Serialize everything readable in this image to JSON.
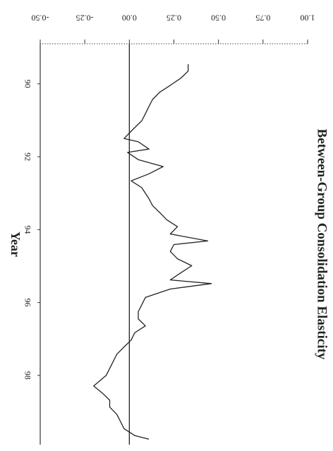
{
  "chart_data": {
    "type": "line",
    "title": "Between-Group Consolidation Elasticity",
    "x_label": "Year",
    "x": [
      89.46,
      89.65,
      89.84,
      90.04,
      90.23,
      90.43,
      90.62,
      90.82,
      91.01,
      91.3,
      91.5,
      91.59,
      91.79,
      91.88,
      92.08,
      92.27,
      92.47,
      92.66,
      92.85,
      93.15,
      93.34,
      93.53,
      93.73,
      93.92,
      94.12,
      94.31,
      94.41,
      94.6,
      94.8,
      94.99,
      95.18,
      95.38,
      95.48,
      95.63,
      95.86,
      96.06,
      96.25,
      96.45,
      96.64,
      96.83,
      97.03,
      97.22,
      97.42,
      97.61,
      97.81,
      98.0,
      98.29,
      98.49,
      98.68,
      98.87,
      99.07,
      99.26,
      99.46,
      99.65,
      99.75
    ],
    "values": [
      0.33,
      0.33,
      0.29,
      0.23,
      0.17,
      0.13,
      0.11,
      0.09,
      0.07,
      0.01,
      -0.03,
      0.05,
      0.11,
      -0.01,
      0.05,
      0.19,
      0.11,
      0.01,
      0.07,
      0.11,
      0.13,
      0.17,
      0.21,
      0.27,
      0.23,
      0.44,
      0.25,
      0.23,
      0.27,
      0.35,
      0.29,
      0.23,
      0.46,
      0.23,
      0.09,
      0.07,
      0.05,
      0.05,
      0.09,
      0.03,
      0.01,
      -0.03,
      -0.07,
      -0.09,
      -0.11,
      -0.13,
      -0.2,
      -0.15,
      -0.11,
      -0.11,
      -0.07,
      -0.05,
      -0.03,
      0.03,
      0.11
    ],
    "color": "#222222",
    "xlim": [
      88.9,
      99.9
    ],
    "xticks": [
      90,
      92,
      94,
      96,
      98
    ],
    "ylim": [
      -0.5,
      1.0
    ],
    "yticks": [
      {
        "value": -0.5,
        "label": "-0.50"
      },
      {
        "value": -0.25,
        "label": "-0.25"
      },
      {
        "value": 0,
        "label": "0.00"
      },
      {
        "value": 0.25,
        "label": "0.25"
      },
      {
        "value": 0.5,
        "label": "0.50"
      },
      {
        "value": 0.75,
        "label": "0.75"
      },
      {
        "value": 1.0,
        "label": "1.00"
      }
    ],
    "hline": 0
  }
}
